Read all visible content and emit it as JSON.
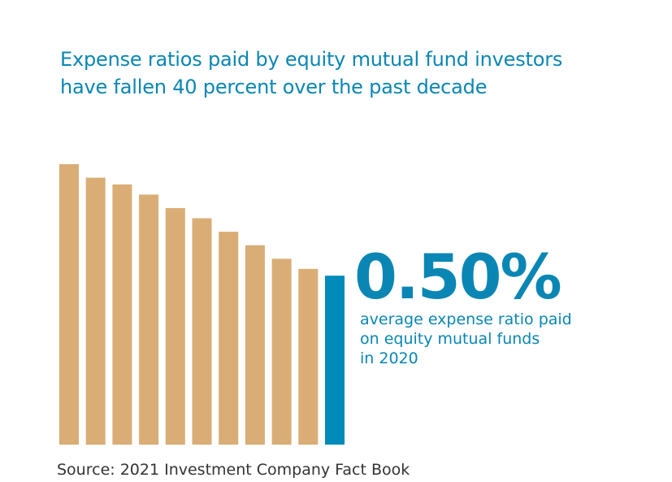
{
  "title": [
    "Expense ratios paid by equity mutual fund investors",
    "have fallen 40 percent over the past decade"
  ],
  "callout": {
    "value": "0.50%",
    "description": [
      "average expense ratio paid",
      "on equity mutual funds",
      "in 2020"
    ]
  },
  "source": "Source: 2021 Investment Company Fact Book",
  "colors": {
    "past_bars": "#d9ad75",
    "highlight_bar": "#008bbb",
    "text": "#0a86b4"
  },
  "chart_data": {
    "type": "bar",
    "title": "Expense ratios paid by equity mutual fund investors have fallen 40 percent over the past decade",
    "values": [
      0.83,
      0.79,
      0.77,
      0.74,
      0.7,
      0.67,
      0.63,
      0.59,
      0.55,
      0.52,
      0.5
    ],
    "highlight_index": 10,
    "ylim": [
      0,
      0.83
    ],
    "axes_visible": false,
    "grid": false,
    "xlabel": "",
    "ylabel": ""
  }
}
